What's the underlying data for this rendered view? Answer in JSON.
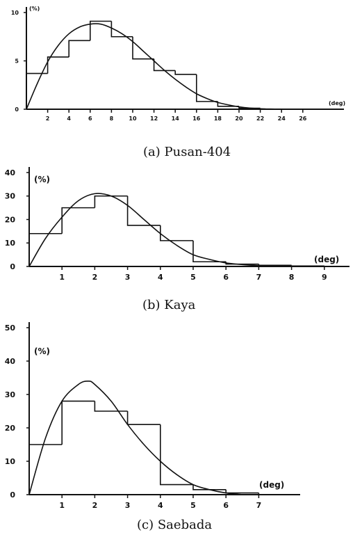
{
  "chart_data": [
    {
      "type": "histogram",
      "caption": "(a) Pusan-404",
      "ylabel": "(%)",
      "xlabel": "(deg)",
      "xlim": [
        0,
        28
      ],
      "ylim": [
        0,
        10
      ],
      "xticks": [
        2,
        4,
        6,
        8,
        10,
        12,
        14,
        16,
        18,
        20,
        22,
        24,
        26
      ],
      "yticks": [
        0,
        5,
        10
      ],
      "bin_edges": [
        0,
        2,
        4,
        6,
        8,
        10,
        12,
        14,
        16,
        18,
        20,
        22,
        24
      ],
      "values": [
        3.7,
        5.4,
        7.1,
        9.1,
        7.5,
        5.2,
        4.0,
        3.6,
        0.8,
        0.3,
        0.1,
        0.0
      ],
      "fit_curve": {
        "x": [
          0,
          1,
          2,
          3,
          4,
          5,
          6,
          7,
          8,
          9,
          10,
          11,
          12,
          13,
          14,
          15,
          16,
          17,
          18,
          19,
          20,
          21,
          22,
          23,
          24
        ],
        "y": [
          0,
          2.6,
          4.9,
          6.6,
          7.8,
          8.5,
          8.8,
          8.8,
          8.4,
          7.8,
          7.0,
          6.0,
          5.0,
          4.0,
          3.1,
          2.3,
          1.6,
          1.1,
          0.7,
          0.45,
          0.25,
          0.12,
          0.05,
          0.02,
          0
        ]
      }
    },
    {
      "type": "histogram",
      "caption": "(b) Kaya",
      "ylabel": "(%)",
      "xlabel": "(deg)",
      "xlim": [
        0,
        10
      ],
      "ylim": [
        0,
        40
      ],
      "xticks": [
        1,
        2,
        3,
        4,
        5,
        6,
        7,
        8,
        9
      ],
      "yticks": [
        0,
        10,
        20,
        30,
        40
      ],
      "bin_edges": [
        0,
        1,
        2,
        3,
        4,
        5,
        6,
        7,
        8,
        9
      ],
      "values": [
        14,
        25,
        30,
        17.5,
        11,
        2,
        1,
        0.5,
        0.2
      ],
      "fit_curve": {
        "x": [
          0,
          0.5,
          1,
          1.5,
          2,
          2.5,
          3,
          3.5,
          4,
          4.5,
          5,
          5.5,
          6,
          6.5,
          7,
          7.5,
          8,
          8.5,
          9
        ],
        "y": [
          0,
          12,
          21,
          28,
          31,
          30,
          26,
          20,
          14,
          9,
          5,
          3,
          1.5,
          0.8,
          0.4,
          0.2,
          0.1,
          0.05,
          0
        ]
      }
    },
    {
      "type": "histogram",
      "caption": "(c) Saebada",
      "ylabel": "(%)",
      "xlabel": "(deg)",
      "xlim": [
        0,
        8
      ],
      "ylim": [
        0,
        50
      ],
      "xticks": [
        1,
        2,
        3,
        4,
        5,
        6,
        7
      ],
      "yticks": [
        0,
        10,
        20,
        30,
        40,
        50
      ],
      "bin_edges": [
        0,
        1,
        2,
        3,
        4,
        5,
        6,
        7
      ],
      "values": [
        15,
        28,
        25,
        21,
        3,
        1.5,
        0.5
      ],
      "fit_curve": {
        "x": [
          0,
          0.5,
          1,
          1.5,
          1.8,
          2,
          2.5,
          3,
          3.5,
          4,
          4.5,
          5,
          5.5,
          6,
          6.5
        ],
        "y": [
          0,
          17,
          28,
          33,
          34,
          33,
          28,
          21,
          15,
          10,
          6,
          3,
          1.5,
          0.5,
          0
        ]
      }
    }
  ]
}
